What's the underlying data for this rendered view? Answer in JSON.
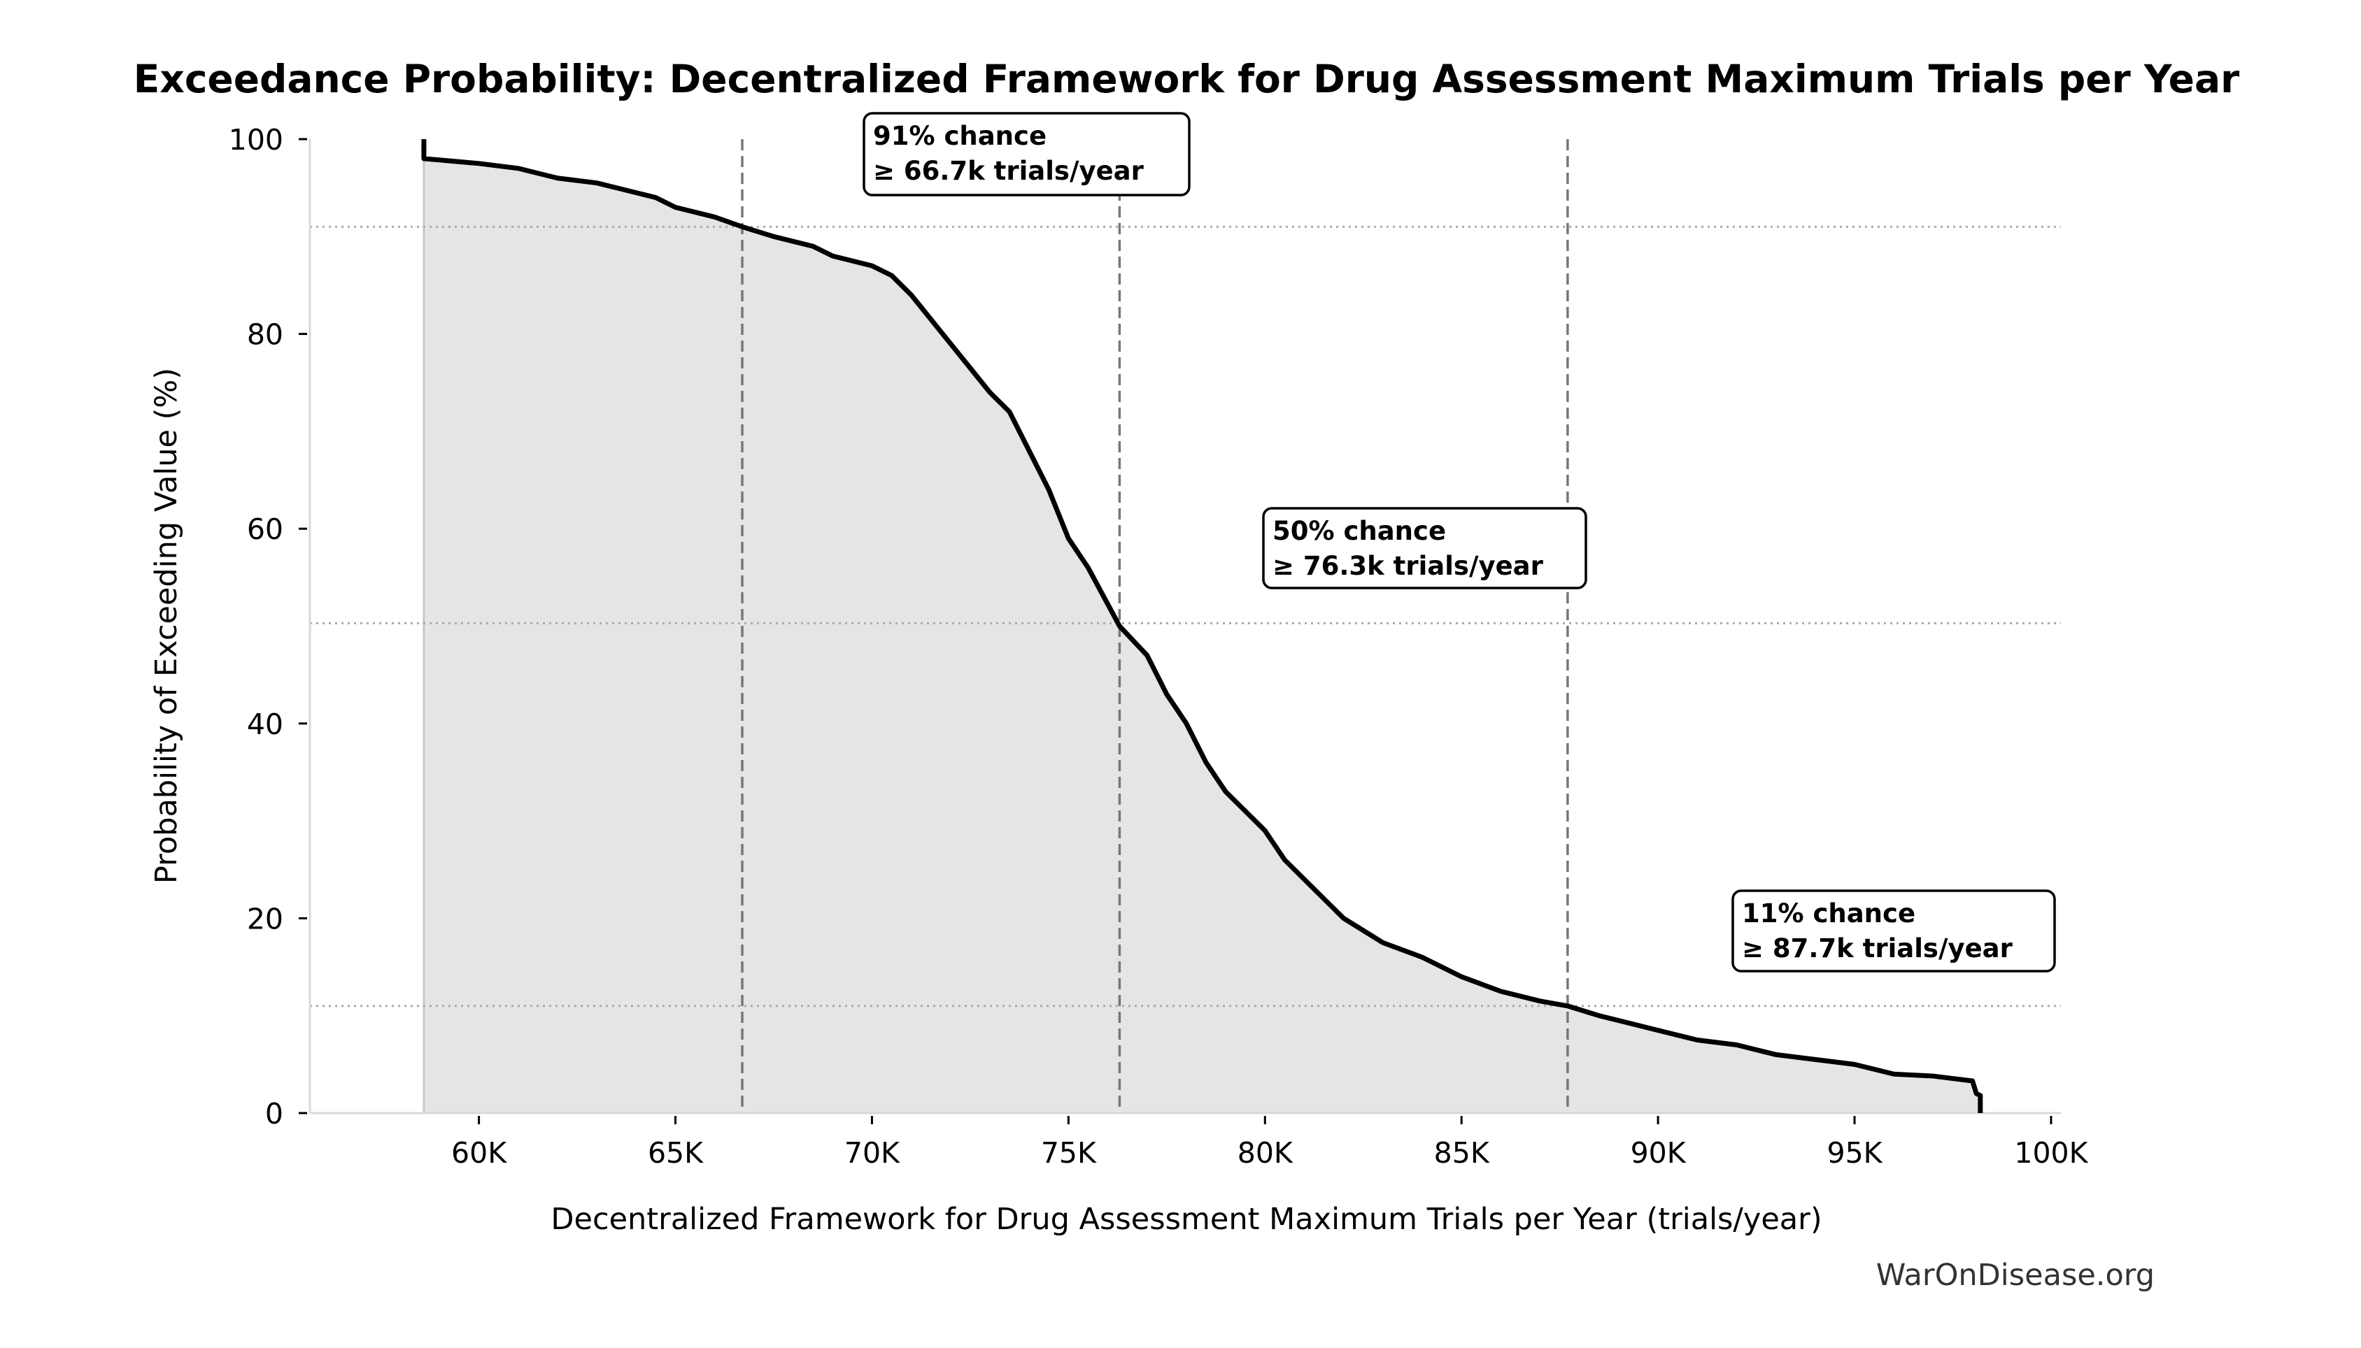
{
  "chart_data": {
    "type": "area",
    "title": "Exceedance Probability: Decentralized Framework for Drug Assessment Maximum Trials per Year",
    "xlabel": "Decentralized Framework for Drug Assessment Maximum Trials per Year (trials/year)",
    "ylabel": "Probability of Exceeding Value (%)",
    "xlim": [
      55700,
      100250
    ],
    "ylim": [
      0,
      100
    ],
    "xticks": [
      60000,
      65000,
      70000,
      75000,
      80000,
      85000,
      90000,
      95000,
      100000
    ],
    "xtick_labels": [
      "60K",
      "65K",
      "70K",
      "75K",
      "80K",
      "85K",
      "90K",
      "95K",
      "100K"
    ],
    "yticks": [
      0,
      20,
      40,
      60,
      80,
      100
    ],
    "ytick_labels": [
      "0",
      "20",
      "40",
      "60",
      "80",
      "100"
    ],
    "grid": false,
    "series": [
      {
        "name": "exceedance",
        "x": [
          58600,
          58600,
          60000,
          61000,
          62000,
          63000,
          64000,
          64500,
          65000,
          66000,
          66700,
          67500,
          68500,
          69000,
          70000,
          70500,
          71000,
          72000,
          73000,
          73500,
          74000,
          74500,
          75000,
          75500,
          76300,
          77000,
          77500,
          78000,
          78500,
          79000,
          80000,
          80500,
          81000,
          82000,
          83000,
          84000,
          85000,
          86000,
          87000,
          87700,
          88500,
          89000,
          90000,
          91000,
          92000,
          93000,
          94000,
          95000,
          96000,
          97000,
          98000,
          98100,
          98200,
          98200
        ],
        "y": [
          100,
          98,
          97.5,
          97,
          96,
          95.5,
          94.5,
          94,
          93,
          92,
          91,
          90,
          89,
          88,
          87,
          86,
          84,
          79,
          74,
          72,
          68,
          64,
          59,
          56,
          50,
          47,
          43,
          40,
          36,
          33,
          29,
          26,
          24,
          20,
          17.5,
          16,
          14,
          12.5,
          11.5,
          11,
          10,
          9.5,
          8.5,
          7.5,
          7,
          6,
          5.5,
          5,
          4,
          3.8,
          3.3,
          2,
          1.8,
          0
        ]
      }
    ],
    "annotations": [
      {
        "prob": 91,
        "value": 66700,
        "line1": "91% chance",
        "line2": "≥ 66.7k trials/year"
      },
      {
        "prob": 50.3,
        "value": 76300,
        "line1": "50% chance",
        "line2": "≥ 76.3k trials/year"
      },
      {
        "prob": 11,
        "value": 87700,
        "line1": "11% chance",
        "line2": "≥ 87.7k trials/year"
      }
    ],
    "watermark": "WarOnDisease.org",
    "colors": {
      "line": "#000000",
      "fill": "#e5e5e5",
      "ref": "#777777",
      "hline": "#aaaaaa"
    }
  }
}
